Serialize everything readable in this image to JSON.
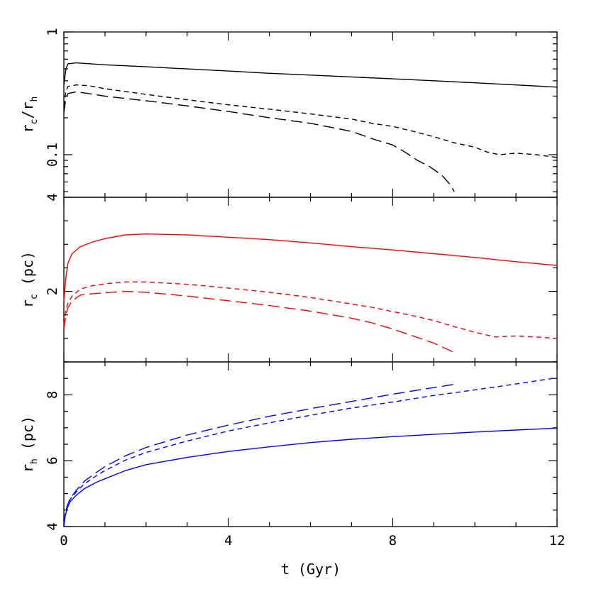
{
  "chart_data": [
    {
      "type": "line",
      "panel": "top",
      "ylabel": {
        "base": "r",
        "sub": "c",
        "mid": "/r",
        "sub2": "h",
        "tail": ""
      },
      "yscale": "log",
      "ylim": [
        0.045,
        1.0
      ],
      "xlim": [
        0,
        12
      ],
      "yticks_labeled": [
        {
          "value": 1,
          "label": "1"
        },
        {
          "value": 0.1,
          "label": "0.1"
        }
      ],
      "colors": {
        "line": "#000000"
      },
      "series": [
        {
          "style": "solid",
          "x": [
            0,
            0.05,
            0.1,
            0.3,
            1,
            2,
            3,
            4,
            5,
            6,
            7,
            8,
            9,
            10,
            11,
            12
          ],
          "y": [
            0.37,
            0.5,
            0.55,
            0.56,
            0.54,
            0.52,
            0.5,
            0.48,
            0.46,
            0.445,
            0.43,
            0.415,
            0.4,
            0.385,
            0.37,
            0.355
          ]
        },
        {
          "style": "short-dash",
          "x": [
            0,
            0.05,
            0.1,
            0.3,
            0.6,
            1,
            2,
            3,
            4,
            5,
            6,
            7,
            7.5,
            8,
            8.5,
            9,
            9.5,
            10,
            10.3,
            10.6,
            11,
            11.5,
            12
          ],
          "y": [
            0.25,
            0.33,
            0.36,
            0.37,
            0.365,
            0.345,
            0.31,
            0.28,
            0.255,
            0.235,
            0.215,
            0.195,
            0.18,
            0.17,
            0.155,
            0.14,
            0.125,
            0.115,
            0.105,
            0.1,
            0.103,
            0.1,
            0.095
          ]
        },
        {
          "style": "long-dash",
          "x": [
            0,
            0.05,
            0.1,
            0.3,
            0.6,
            1,
            2,
            3,
            4,
            5,
            6,
            7,
            7.5,
            8,
            8.3,
            8.6,
            8.9,
            9.2,
            9.4,
            9.5
          ],
          "y": [
            0.22,
            0.29,
            0.315,
            0.325,
            0.315,
            0.3,
            0.275,
            0.25,
            0.225,
            0.2,
            0.18,
            0.155,
            0.135,
            0.12,
            0.105,
            0.09,
            0.08,
            0.068,
            0.057,
            0.05
          ]
        }
      ]
    },
    {
      "type": "line",
      "panel": "middle",
      "ylabel": {
        "base": "r",
        "sub": "c",
        "mid": "",
        "sub2": "",
        "tail": " (pc)"
      },
      "ylim": [
        0.5,
        4.0
      ],
      "xlim": [
        0,
        12
      ],
      "yticks_labeled": [
        {
          "value": 4,
          "label": "4"
        },
        {
          "value": 2,
          "label": "2"
        }
      ],
      "colors": {
        "line": "#ff0000"
      },
      "series": [
        {
          "style": "solid",
          "x": [
            0,
            0.05,
            0.1,
            0.2,
            0.4,
            0.7,
            1,
            1.5,
            2,
            3,
            4,
            5,
            6,
            7,
            8,
            9,
            10,
            11,
            12
          ],
          "y": [
            1.8,
            2.3,
            2.6,
            2.8,
            2.95,
            3.05,
            3.12,
            3.2,
            3.22,
            3.2,
            3.15,
            3.1,
            3.03,
            2.95,
            2.88,
            2.8,
            2.72,
            2.63,
            2.55
          ]
        },
        {
          "style": "short-dash",
          "x": [
            0,
            0.05,
            0.1,
            0.2,
            0.4,
            0.7,
            1,
            1.5,
            2,
            3,
            4,
            5,
            6,
            7,
            7.5,
            8,
            8.5,
            9,
            9.5,
            10,
            10.5,
            11,
            11.5,
            12
          ],
          "y": [
            1.3,
            1.6,
            1.75,
            1.9,
            2.05,
            2.12,
            2.16,
            2.2,
            2.2,
            2.15,
            2.07,
            1.98,
            1.87,
            1.73,
            1.66,
            1.57,
            1.48,
            1.38,
            1.25,
            1.13,
            1.03,
            1.05,
            1.03,
            1.0
          ]
        },
        {
          "style": "long-dash",
          "x": [
            0,
            0.05,
            0.1,
            0.2,
            0.4,
            0.7,
            1,
            1.5,
            2,
            3,
            4,
            5,
            6,
            7,
            7.5,
            8,
            8.5,
            9,
            9.3,
            9.5
          ],
          "y": [
            1.2,
            1.5,
            1.65,
            1.8,
            1.92,
            1.95,
            1.97,
            2.0,
            1.98,
            1.9,
            1.8,
            1.7,
            1.58,
            1.43,
            1.33,
            1.2,
            1.05,
            0.9,
            0.78,
            0.7
          ]
        }
      ]
    },
    {
      "type": "line",
      "panel": "bottom",
      "ylabel": {
        "base": "r",
        "sub": "h",
        "mid": "",
        "sub2": "",
        "tail": " (pc)"
      },
      "ylim": [
        4.0,
        9.0
      ],
      "xlim": [
        0,
        12
      ],
      "yticks_labeled": [
        {
          "value": 8,
          "label": "8"
        },
        {
          "value": 6,
          "label": "6"
        },
        {
          "value": 4,
          "label": "4"
        }
      ],
      "xticks_labeled": [
        {
          "value": 0,
          "label": "0"
        },
        {
          "value": 4,
          "label": "4"
        },
        {
          "value": 8,
          "label": "8"
        },
        {
          "value": 12,
          "label": "12"
        }
      ],
      "xlabel": "t (Gyr)",
      "colors": {
        "line": "#0000ff"
      },
      "series": [
        {
          "style": "solid",
          "x": [
            0,
            0.03,
            0.08,
            0.15,
            0.3,
            0.5,
            0.8,
            1,
            1.5,
            2,
            3,
            4,
            5,
            6,
            7,
            8,
            9,
            10,
            11,
            12
          ],
          "y": [
            4.0,
            4.3,
            4.55,
            4.75,
            4.95,
            5.15,
            5.35,
            5.45,
            5.7,
            5.88,
            6.1,
            6.28,
            6.42,
            6.55,
            6.65,
            6.73,
            6.8,
            6.87,
            6.93,
            6.99
          ]
        },
        {
          "style": "short-dash",
          "x": [
            0,
            0.03,
            0.08,
            0.15,
            0.3,
            0.5,
            0.8,
            1,
            1.5,
            2,
            3,
            4,
            5,
            6,
            7,
            8,
            9,
            10,
            11,
            12
          ],
          "y": [
            4.0,
            4.35,
            4.6,
            4.82,
            5.05,
            5.3,
            5.55,
            5.7,
            6.02,
            6.25,
            6.6,
            6.9,
            7.15,
            7.38,
            7.6,
            7.78,
            7.98,
            8.15,
            8.33,
            8.52
          ]
        },
        {
          "style": "long-dash",
          "x": [
            0,
            0.03,
            0.08,
            0.15,
            0.3,
            0.5,
            0.8,
            1,
            1.5,
            2,
            3,
            4,
            5,
            6,
            7,
            8,
            8.5,
            9,
            9.5
          ],
          "y": [
            4.0,
            4.35,
            4.62,
            4.85,
            5.1,
            5.38,
            5.65,
            5.82,
            6.15,
            6.4,
            6.78,
            7.08,
            7.35,
            7.58,
            7.8,
            8.02,
            8.12,
            8.22,
            8.32
          ]
        }
      ]
    }
  ]
}
